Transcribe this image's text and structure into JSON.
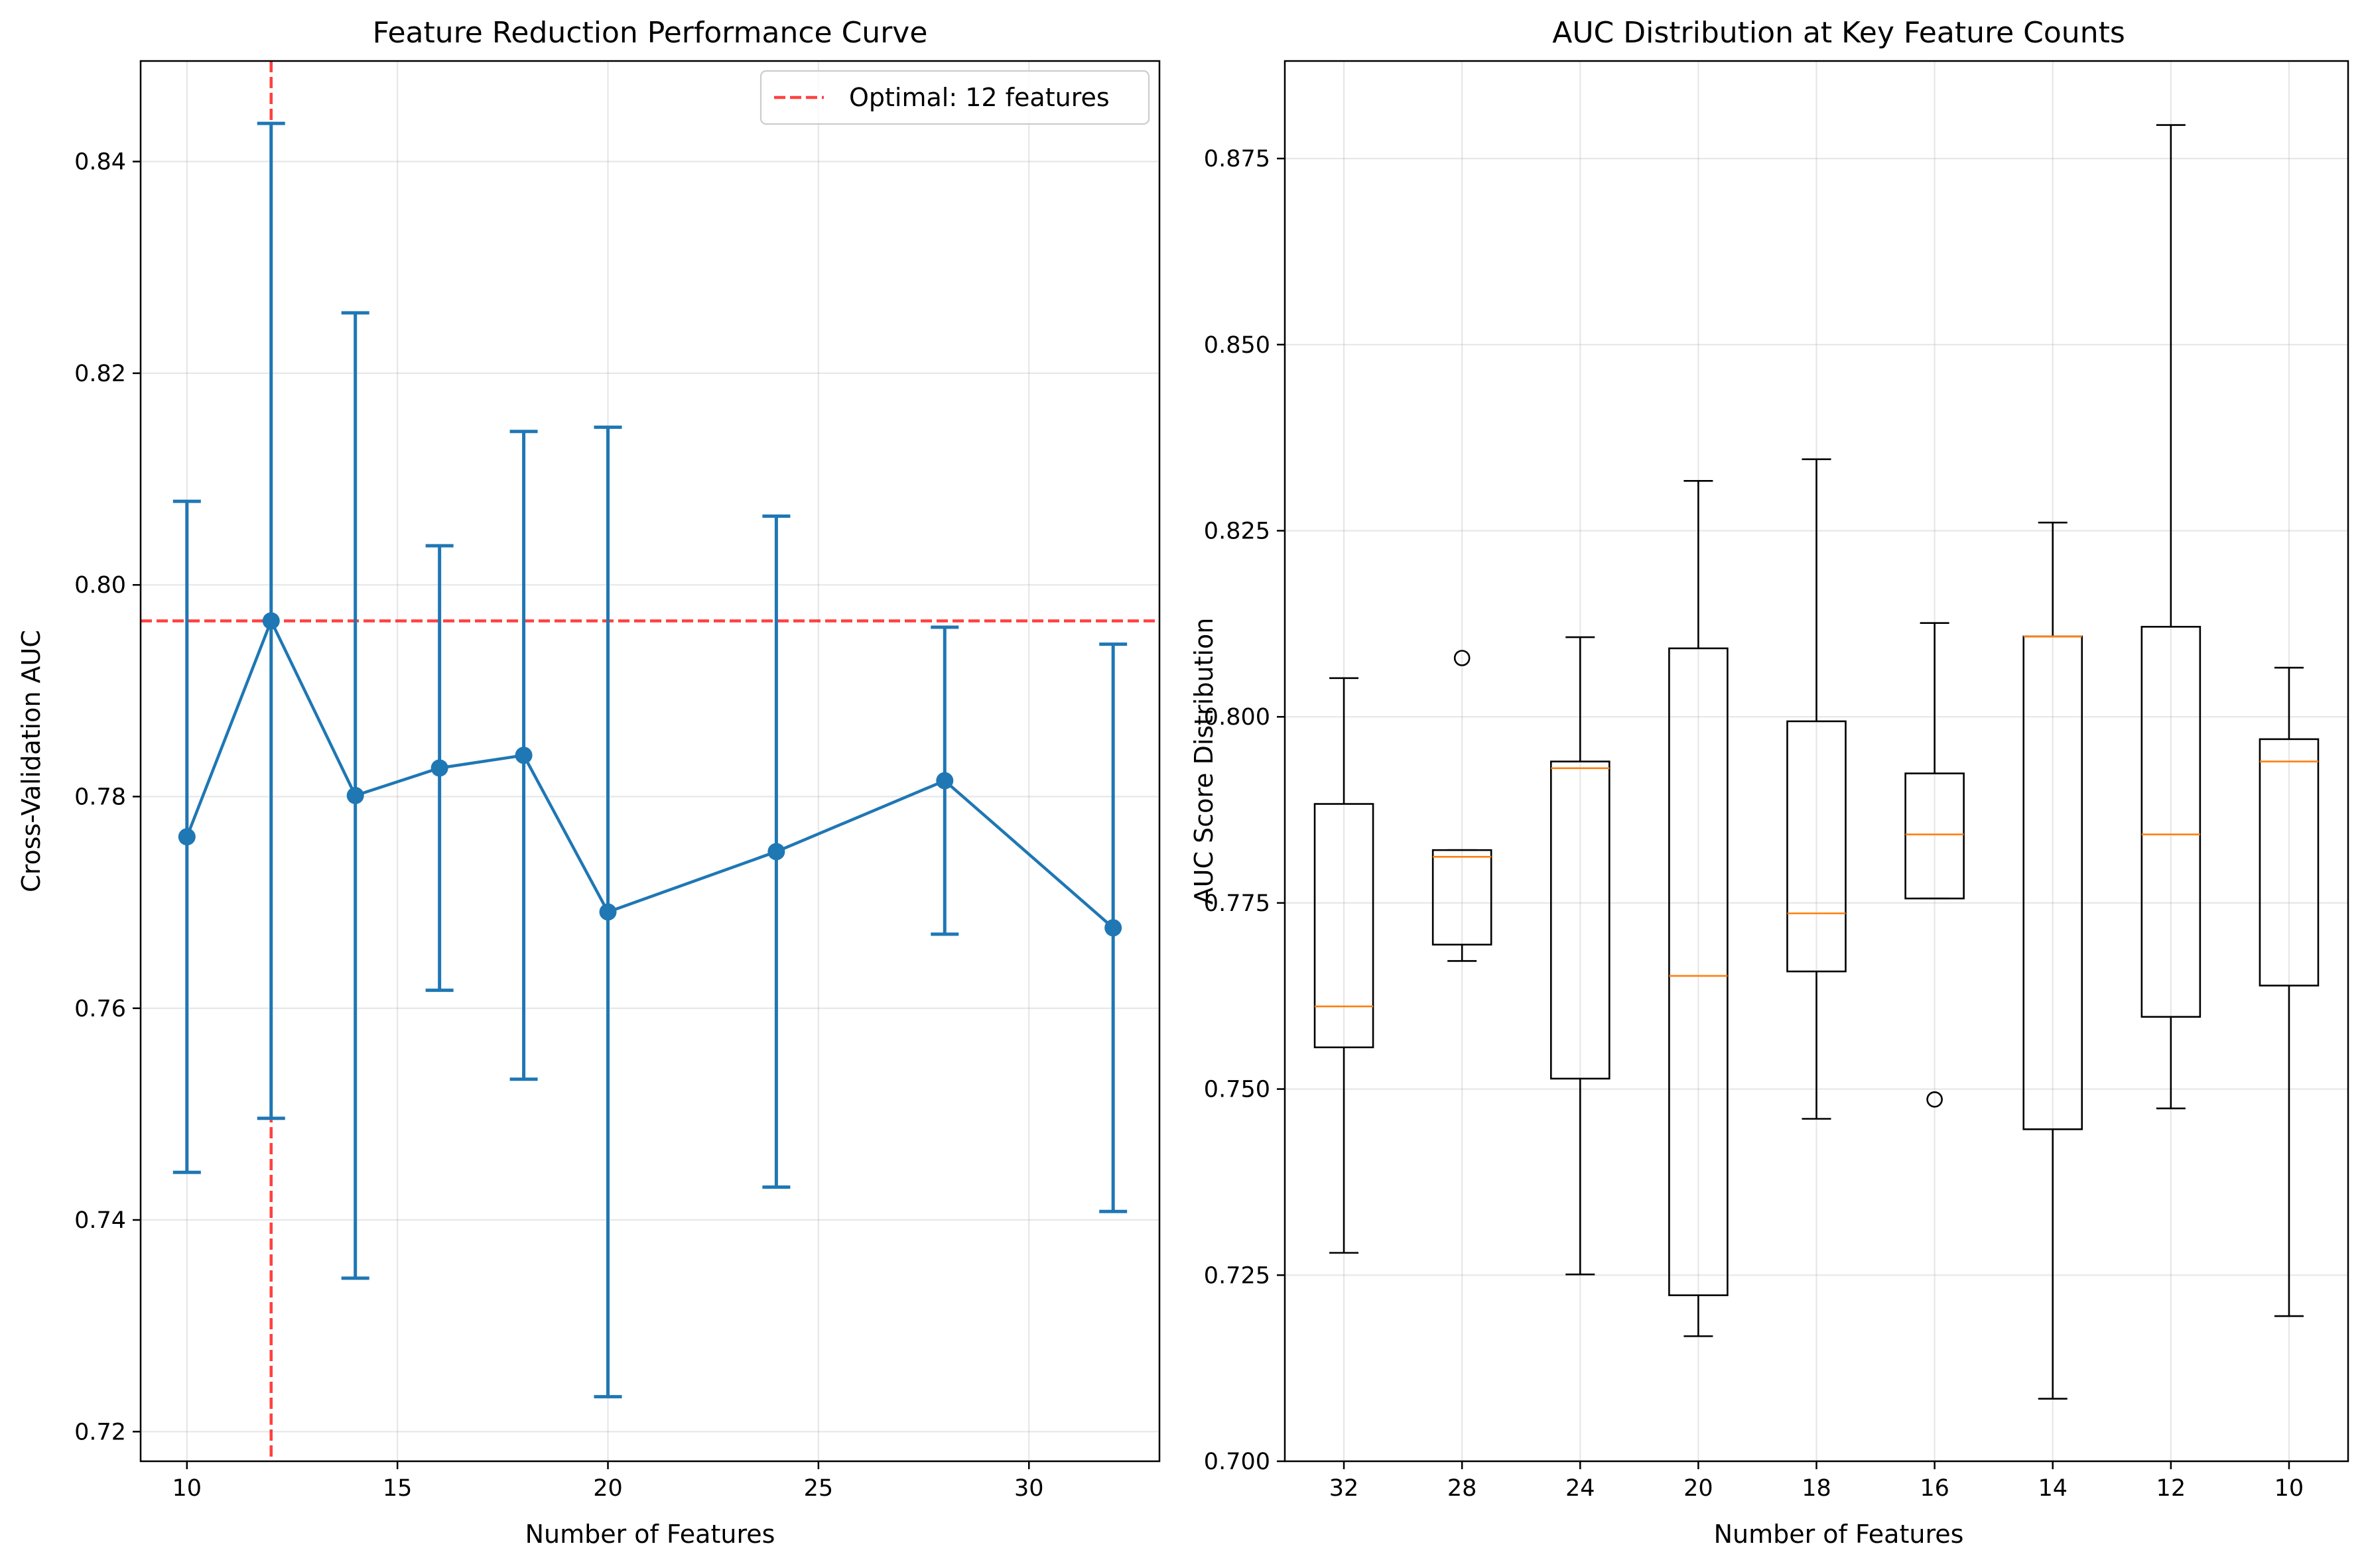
{
  "chart_data": [
    {
      "type": "line",
      "title": "Feature Reduction Performance Curve",
      "xlabel": "Number of Features",
      "ylabel": "Cross-Validation AUC",
      "x": [
        10,
        12,
        14,
        16,
        18,
        20,
        24,
        28,
        32
      ],
      "y": [
        0.7762,
        0.7966,
        0.7801,
        0.7827,
        0.7839,
        0.7691,
        0.7748,
        0.7815,
        0.7676
      ],
      "yerr": [
        0.0317,
        0.047,
        0.0456,
        0.021,
        0.0306,
        0.0458,
        0.0317,
        0.0145,
        0.0268
      ],
      "xlim": [
        8.9,
        33.1
      ],
      "ylim": [
        0.7172,
        0.8495
      ],
      "xticks": [
        "10",
        "15",
        "20",
        "25",
        "30"
      ],
      "yticks": [
        "0.72",
        "0.74",
        "0.76",
        "0.78",
        "0.80",
        "0.82",
        "0.84"
      ],
      "line_color": "#1f77b4",
      "optimal": {
        "x": 12,
        "y": 0.7966,
        "label": "Optimal: 12 features",
        "color": "#ff0000"
      },
      "legend_position": "top-right",
      "grid": true
    },
    {
      "type": "box",
      "title": "AUC Distribution at Key Feature Counts",
      "xlabel": "Number of Features",
      "ylabel": "AUC Score Distribution",
      "categories": [
        "32",
        "28",
        "24",
        "20",
        "18",
        "16",
        "14",
        "12",
        "10"
      ],
      "boxes": [
        {
          "whislo": 0.728,
          "q1": 0.7556,
          "med": 0.7611,
          "q3": 0.7883,
          "whishi": 0.8052,
          "fliers": []
        },
        {
          "whislo": 0.7672,
          "q1": 0.7694,
          "med": 0.7812,
          "q3": 0.7821,
          "whishi": 0.7821,
          "fliers": [
            0.8079
          ]
        },
        {
          "whislo": 0.7251,
          "q1": 0.7514,
          "med": 0.7931,
          "q3": 0.794,
          "whishi": 0.8107,
          "fliers": []
        },
        {
          "whislo": 0.7168,
          "q1": 0.7223,
          "med": 0.7652,
          "q3": 0.8092,
          "whishi": 0.8317,
          "fliers": []
        },
        {
          "whislo": 0.746,
          "q1": 0.7658,
          "med": 0.7736,
          "q3": 0.7994,
          "whishi": 0.8346,
          "fliers": []
        },
        {
          "whislo": 0.7756,
          "q1": 0.7756,
          "med": 0.7842,
          "q3": 0.7924,
          "whishi": 0.8126,
          "fliers": [
            0.7486
          ]
        },
        {
          "whislo": 0.7084,
          "q1": 0.7446,
          "med": 0.8108,
          "q3": 0.8108,
          "whishi": 0.8261,
          "fliers": []
        },
        {
          "whislo": 0.7474,
          "q1": 0.7597,
          "med": 0.7842,
          "q3": 0.8121,
          "whishi": 0.8795,
          "fliers": []
        },
        {
          "whislo": 0.7195,
          "q1": 0.7639,
          "med": 0.794,
          "q3": 0.797,
          "whishi": 0.8066,
          "fliers": []
        }
      ],
      "ylim": [
        0.7,
        0.8881
      ],
      "yticks": [
        "0.700",
        "0.725",
        "0.750",
        "0.775",
        "0.800",
        "0.825",
        "0.850",
        "0.875"
      ],
      "median_color": "#ff7f0e",
      "grid": true
    }
  ]
}
